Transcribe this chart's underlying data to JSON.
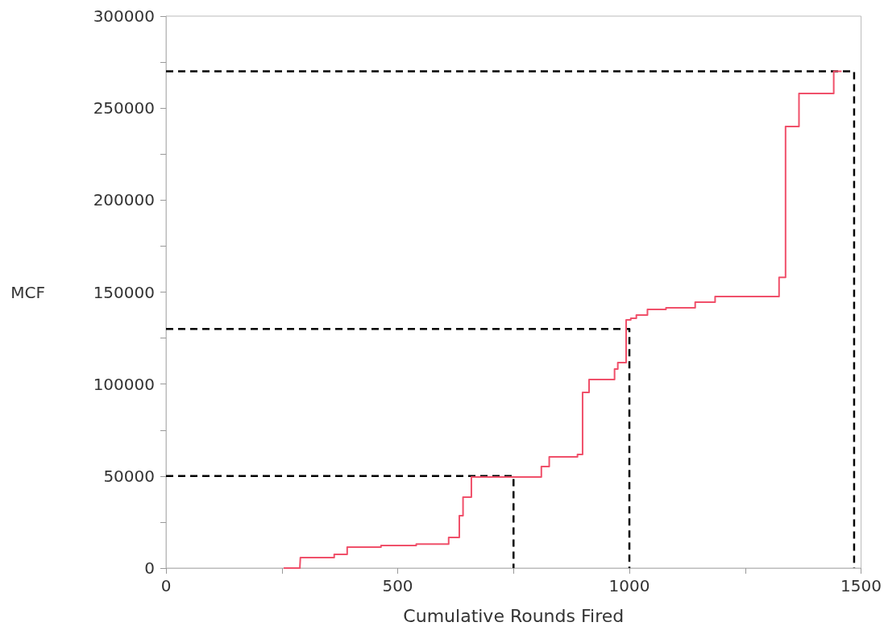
{
  "chart_data": {
    "type": "step",
    "xlabel": "Cumulative Rounds Fired",
    "ylabel": "MCF",
    "xlim": [
      0,
      1500
    ],
    "xticks": [
      0,
      {
        "value": 250,
        "label": null
      },
      500,
      {
        "value": 750,
        "label": null
      },
      1000,
      {
        "value": 1250,
        "label": null
      },
      1500
    ],
    "ylim": [
      0,
      300000
    ],
    "yticks": [
      0,
      {
        "value": 25000,
        "label": null
      },
      50000,
      {
        "value": 75000,
        "label": null
      },
      100000,
      {
        "value": 125000,
        "label": null
      },
      150000,
      {
        "value": 175000,
        "label": null
      },
      200000,
      {
        "value": 225000,
        "label": null
      },
      250000,
      {
        "value": 275000,
        "label": null
      },
      300000
    ],
    "grid": false,
    "marker": "none",
    "series": [
      {
        "type": "line",
        "color": "#000000",
        "line_style": "dashed",
        "x": [
          0,
          750,
          750
        ],
        "values": [
          50000,
          50000,
          0
        ]
      },
      {
        "type": "line",
        "color": "#000000",
        "line_style": "dashed",
        "x": [
          0,
          1000,
          1000
        ],
        "values": [
          130000,
          130000,
          0
        ]
      },
      {
        "type": "line",
        "color": "#000000",
        "line_style": "dashed",
        "x": [
          0,
          1485,
          1485
        ],
        "values": [
          270000,
          270000,
          0
        ]
      },
      {
        "color": "#f0506a",
        "line_style": "solid",
        "x": [
          254,
          289,
          290,
          363,
          391,
          464,
          540,
          610,
          633,
          641,
          659,
          810,
          827,
          888,
          899,
          913,
          968,
          975,
          993,
          1003,
          1015,
          1039,
          1079,
          1142,
          1185,
          1323,
          1337,
          1366,
          1441,
          1458
        ],
        "values": [
          0,
          1000,
          5700,
          7400,
          11400,
          12300,
          13000,
          16600,
          28500,
          38500,
          49500,
          55200,
          60400,
          61800,
          95500,
          102500,
          108200,
          111700,
          134900,
          135800,
          137500,
          140600,
          141500,
          144500,
          147600,
          158000,
          240000,
          258000,
          270000,
          270000
        ]
      }
    ]
  }
}
